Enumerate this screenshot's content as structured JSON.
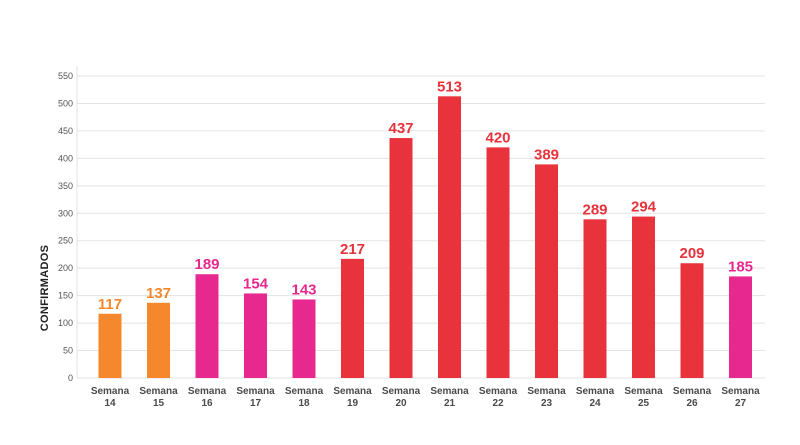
{
  "chart_data": {
    "type": "bar",
    "ylabel": "CONFIRMADOS",
    "ylim": [
      0,
      550
    ],
    "yticks": [
      0,
      50,
      100,
      150,
      200,
      250,
      300,
      350,
      400,
      450,
      500,
      550
    ],
    "grid": true,
    "categories": [
      [
        "Semana",
        "14"
      ],
      [
        "Semana",
        "15"
      ],
      [
        "Semana",
        "16"
      ],
      [
        "Semana",
        "17"
      ],
      [
        "Semana",
        "18"
      ],
      [
        "Semana",
        "19"
      ],
      [
        "Semana",
        "20"
      ],
      [
        "Semana",
        "21"
      ],
      [
        "Semana",
        "22"
      ],
      [
        "Semana",
        "23"
      ],
      [
        "Semana",
        "24"
      ],
      [
        "Semana",
        "25"
      ],
      [
        "Semana",
        "26"
      ],
      [
        "Semana",
        "27"
      ]
    ],
    "values": [
      117,
      137,
      189,
      154,
      143,
      217,
      437,
      513,
      420,
      389,
      289,
      294,
      209,
      185
    ],
    "bar_colors": [
      "#f5872d",
      "#f5872d",
      "#e6288f",
      "#e6288f",
      "#e6288f",
      "#e8323c",
      "#e8323c",
      "#e8323c",
      "#e8323c",
      "#e8323c",
      "#e8323c",
      "#e8323c",
      "#e8323c",
      "#e6288f"
    ],
    "colors": {
      "orange": "#f5872d",
      "magenta": "#e6288f",
      "red": "#e8323c",
      "grid": "#e3e3e3"
    }
  }
}
